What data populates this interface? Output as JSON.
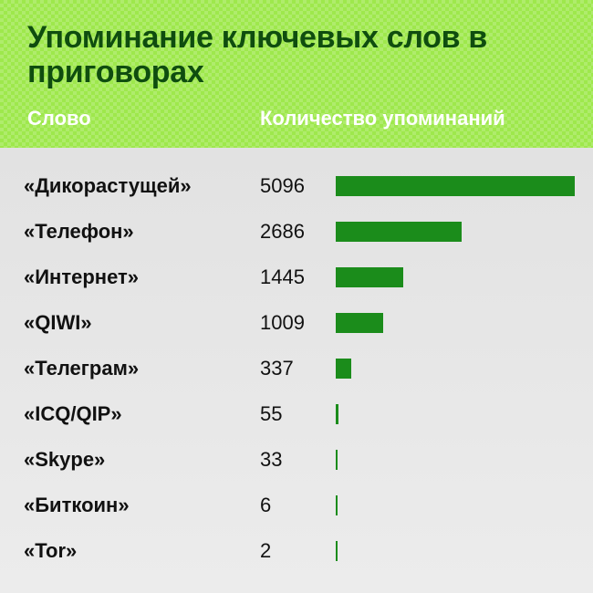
{
  "colors": {
    "header_bg": "#9ee84c",
    "title": "#0f4d0f",
    "column_headers": "#ffffff",
    "bar": "#1b8c1b",
    "body_bg": "#e9e9e9"
  },
  "chart_data": {
    "type": "bar",
    "orientation": "horizontal",
    "title": "Упоминание ключевых слов в приговорах",
    "category_header": "Слово",
    "value_header": "Количество упоминаний",
    "categories": [
      "«Дикорастущей»",
      "«Телефон»",
      "«Интернет»",
      "«QIWI»",
      "«Телеграм»",
      "«ICQ/QIP»",
      "«Skype»",
      "«Биткоин»",
      "«Tor»"
    ],
    "values": [
      5096,
      2686,
      1445,
      1009,
      337,
      55,
      33,
      6,
      2
    ],
    "xlim": [
      0,
      5096
    ],
    "grid": false,
    "legend": "none"
  }
}
